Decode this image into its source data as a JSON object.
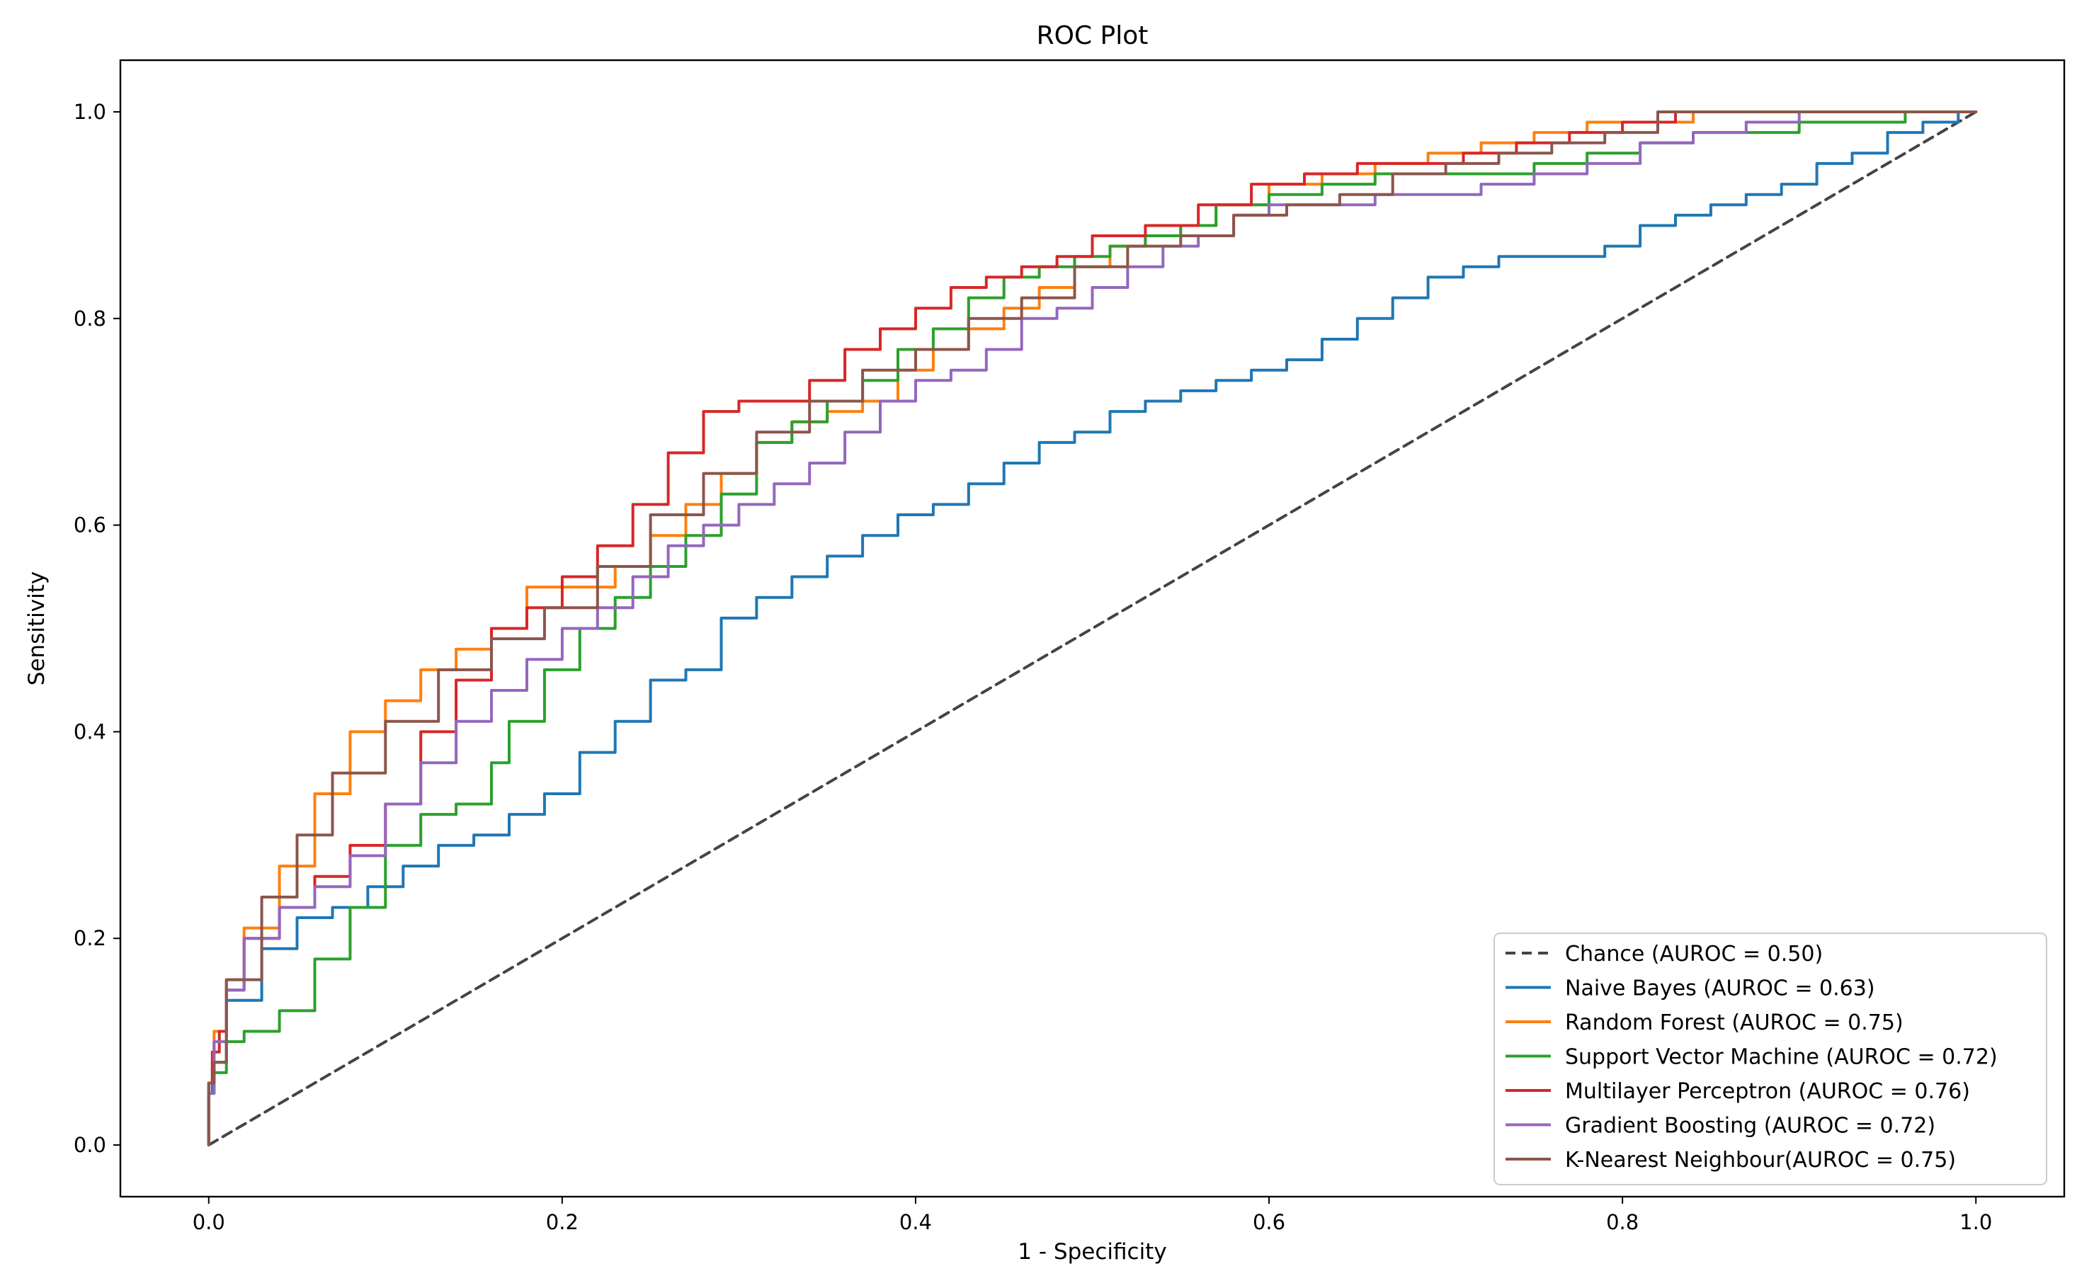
{
  "chart_data": {
    "type": "line",
    "title": "ROC Plot",
    "xlabel": "1 - Specificity",
    "ylabel": "Sensitivity",
    "xlim": [
      -0.05,
      1.05
    ],
    "ylim": [
      -0.05,
      1.05
    ],
    "xticks": [
      0.0,
      0.2,
      0.4,
      0.6,
      0.8,
      1.0
    ],
    "yticks": [
      0.0,
      0.2,
      0.4,
      0.6,
      0.8,
      1.0
    ],
    "xtick_labels": [
      "0.0",
      "0.2",
      "0.4",
      "0.6",
      "0.8",
      "1.0"
    ],
    "ytick_labels": [
      "0.0",
      "0.2",
      "0.4",
      "0.6",
      "0.8",
      "1.0"
    ],
    "grid": false,
    "legend_position": "lower-right",
    "series": [
      {
        "name": "Chance (AUROC = 0.50)",
        "color": "#444444",
        "dashed": true,
        "x": [
          0,
          1
        ],
        "y": [
          0,
          1
        ]
      },
      {
        "name": "Naive Bayes (AUROC = 0.63)",
        "color": "#1f77b4",
        "dashed": false,
        "x": [
          0,
          0.002,
          0.01,
          0.03,
          0.05,
          0.07,
          0.09,
          0.11,
          0.13,
          0.15,
          0.17,
          0.19,
          0.21,
          0.23,
          0.25,
          0.27,
          0.29,
          0.31,
          0.33,
          0.35,
          0.37,
          0.39,
          0.41,
          0.43,
          0.45,
          0.47,
          0.49,
          0.51,
          0.53,
          0.55,
          0.57,
          0.59,
          0.61,
          0.63,
          0.65,
          0.67,
          0.69,
          0.71,
          0.73,
          0.75,
          0.77,
          0.79,
          0.81,
          0.83,
          0.85,
          0.87,
          0.89,
          0.91,
          0.93,
          0.95,
          0.97,
          0.99,
          1.0
        ],
        "y": [
          0,
          0.05,
          0.08,
          0.14,
          0.19,
          0.22,
          0.23,
          0.25,
          0.27,
          0.29,
          0.3,
          0.32,
          0.34,
          0.38,
          0.41,
          0.45,
          0.46,
          0.51,
          0.53,
          0.55,
          0.57,
          0.59,
          0.61,
          0.62,
          0.64,
          0.66,
          0.68,
          0.69,
          0.71,
          0.72,
          0.73,
          0.74,
          0.75,
          0.76,
          0.78,
          0.8,
          0.82,
          0.84,
          0.85,
          0.86,
          0.86,
          0.86,
          0.87,
          0.89,
          0.9,
          0.91,
          0.92,
          0.93,
          0.95,
          0.96,
          0.98,
          0.99,
          1.0
        ]
      },
      {
        "name": "Random Forest (AUROC = 0.75)",
        "color": "#ff7f0e",
        "dashed": false,
        "x": [
          0,
          0.003,
          0.01,
          0.02,
          0.04,
          0.06,
          0.08,
          0.1,
          0.12,
          0.14,
          0.16,
          0.18,
          0.19,
          0.21,
          0.23,
          0.25,
          0.27,
          0.29,
          0.31,
          0.33,
          0.35,
          0.37,
          0.39,
          0.41,
          0.43,
          0.45,
          0.47,
          0.49,
          0.51,
          0.53,
          0.55,
          0.57,
          0.6,
          0.63,
          0.66,
          0.69,
          0.72,
          0.75,
          0.78,
          0.81,
          0.84,
          0.87,
          0.9,
          0.93,
          0.96,
          1.0
        ],
        "y": [
          0,
          0.06,
          0.11,
          0.16,
          0.21,
          0.27,
          0.34,
          0.4,
          0.43,
          0.46,
          0.48,
          0.5,
          0.54,
          0.54,
          0.54,
          0.56,
          0.59,
          0.62,
          0.65,
          0.68,
          0.7,
          0.71,
          0.72,
          0.75,
          0.77,
          0.79,
          0.81,
          0.83,
          0.85,
          0.87,
          0.88,
          0.89,
          0.91,
          0.93,
          0.94,
          0.95,
          0.96,
          0.97,
          0.98,
          0.99,
          0.99,
          1.0,
          1.0,
          1.0,
          1.0,
          1.0
        ]
      },
      {
        "name": "Support Vector Machine (AUROC = 0.72)",
        "color": "#2ca02c",
        "dashed": false,
        "x": [
          0,
          0.003,
          0.01,
          0.02,
          0.04,
          0.06,
          0.08,
          0.1,
          0.12,
          0.14,
          0.16,
          0.17,
          0.19,
          0.21,
          0.23,
          0.25,
          0.27,
          0.29,
          0.31,
          0.33,
          0.35,
          0.37,
          0.39,
          0.41,
          0.43,
          0.45,
          0.47,
          0.49,
          0.51,
          0.53,
          0.55,
          0.57,
          0.6,
          0.63,
          0.66,
          0.69,
          0.72,
          0.75,
          0.78,
          0.81,
          0.84,
          0.87,
          0.9,
          0.93,
          0.96,
          1.0
        ],
        "y": [
          0,
          0.05,
          0.07,
          0.1,
          0.11,
          0.13,
          0.18,
          0.23,
          0.29,
          0.32,
          0.33,
          0.37,
          0.41,
          0.46,
          0.5,
          0.53,
          0.56,
          0.59,
          0.63,
          0.68,
          0.7,
          0.72,
          0.74,
          0.77,
          0.79,
          0.82,
          0.84,
          0.85,
          0.86,
          0.87,
          0.88,
          0.89,
          0.91,
          0.92,
          0.93,
          0.94,
          0.94,
          0.94,
          0.95,
          0.96,
          0.97,
          0.98,
          0.98,
          0.99,
          0.99,
          1.0
        ]
      },
      {
        "name": "Multilayer Perceptron (AUROC = 0.76)",
        "color": "#d62728",
        "dashed": false,
        "x": [
          0,
          0.002,
          0.006,
          0.01,
          0.02,
          0.04,
          0.06,
          0.08,
          0.1,
          0.12,
          0.14,
          0.16,
          0.18,
          0.2,
          0.22,
          0.24,
          0.26,
          0.28,
          0.3,
          0.32,
          0.34,
          0.36,
          0.38,
          0.4,
          0.42,
          0.44,
          0.46,
          0.48,
          0.5,
          0.53,
          0.56,
          0.59,
          0.62,
          0.65,
          0.68,
          0.71,
          0.74,
          0.77,
          0.8,
          0.83,
          0.86,
          0.9,
          0.94,
          1.0
        ],
        "y": [
          0,
          0.06,
          0.09,
          0.11,
          0.15,
          0.2,
          0.23,
          0.26,
          0.29,
          0.33,
          0.4,
          0.45,
          0.5,
          0.52,
          0.55,
          0.58,
          0.62,
          0.67,
          0.71,
          0.72,
          0.72,
          0.74,
          0.77,
          0.79,
          0.81,
          0.83,
          0.84,
          0.85,
          0.86,
          0.88,
          0.89,
          0.91,
          0.93,
          0.94,
          0.95,
          0.95,
          0.96,
          0.97,
          0.98,
          0.99,
          1.0,
          1.0,
          1.0,
          1.0
        ]
      },
      {
        "name": "Gradient Boosting (AUROC = 0.72)",
        "color": "#9467bd",
        "dashed": false,
        "x": [
          0,
          0.003,
          0.01,
          0.02,
          0.04,
          0.06,
          0.08,
          0.1,
          0.12,
          0.14,
          0.16,
          0.18,
          0.2,
          0.22,
          0.24,
          0.26,
          0.28,
          0.3,
          0.32,
          0.34,
          0.36,
          0.38,
          0.4,
          0.42,
          0.44,
          0.46,
          0.48,
          0.5,
          0.52,
          0.54,
          0.56,
          0.58,
          0.6,
          0.63,
          0.66,
          0.69,
          0.72,
          0.75,
          0.78,
          0.81,
          0.84,
          0.87,
          0.9,
          0.93,
          0.96,
          1.0
        ],
        "y": [
          0,
          0.05,
          0.1,
          0.15,
          0.2,
          0.23,
          0.25,
          0.28,
          0.33,
          0.37,
          0.41,
          0.44,
          0.47,
          0.5,
          0.52,
          0.55,
          0.58,
          0.6,
          0.62,
          0.64,
          0.66,
          0.69,
          0.72,
          0.74,
          0.75,
          0.77,
          0.8,
          0.81,
          0.83,
          0.85,
          0.87,
          0.88,
          0.9,
          0.91,
          0.91,
          0.92,
          0.92,
          0.93,
          0.94,
          0.95,
          0.97,
          0.98,
          0.99,
          1.0,
          1.0,
          1.0
        ]
      },
      {
        "name": "K-Nearest Neighbour(AUROC = 0.75)",
        "color": "#8c564b",
        "dashed": false,
        "x": [
          0,
          0.003,
          0.01,
          0.03,
          0.05,
          0.07,
          0.1,
          0.13,
          0.16,
          0.19,
          0.22,
          0.25,
          0.28,
          0.31,
          0.34,
          0.37,
          0.4,
          0.43,
          0.46,
          0.49,
          0.52,
          0.55,
          0.58,
          0.61,
          0.64,
          0.67,
          0.7,
          0.73,
          0.76,
          0.79,
          0.82,
          0.85,
          0.9,
          0.95,
          1.0
        ],
        "y": [
          0,
          0.06,
          0.08,
          0.16,
          0.24,
          0.3,
          0.36,
          0.41,
          0.46,
          0.49,
          0.52,
          0.56,
          0.61,
          0.65,
          0.69,
          0.72,
          0.75,
          0.77,
          0.8,
          0.82,
          0.85,
          0.87,
          0.88,
          0.9,
          0.91,
          0.92,
          0.94,
          0.95,
          0.96,
          0.97,
          0.98,
          1.0,
          1.0,
          1.0,
          1.0
        ]
      }
    ]
  }
}
